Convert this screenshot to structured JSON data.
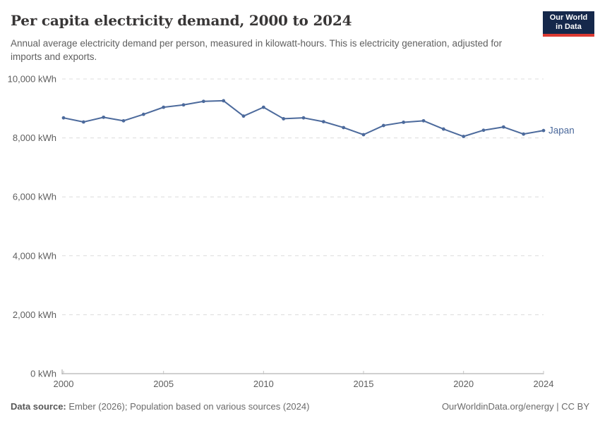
{
  "header": {
    "title": "Per capita electricity demand, 2000 to 2024",
    "subtitle": "Annual average electricity demand per person, measured in kilowatt-hours. This is electricity generation, adjusted for imports and exports.",
    "logo": {
      "line1": "Our World",
      "line2": "in Data",
      "bg_color": "#15284B",
      "accent_color": "#DC3A32"
    }
  },
  "chart_data": {
    "type": "line",
    "title": "Per capita electricity demand, 2000 to 2024",
    "unit": "kWh",
    "x": [
      2000,
      2001,
      2002,
      2003,
      2004,
      2005,
      2006,
      2007,
      2008,
      2009,
      2010,
      2011,
      2012,
      2013,
      2014,
      2015,
      2016,
      2017,
      2018,
      2019,
      2020,
      2021,
      2022,
      2023,
      2024
    ],
    "series": [
      {
        "name": "Japan",
        "color": "#4C6A9C",
        "values": [
          8680,
          8540,
          8700,
          8580,
          8800,
          9040,
          9120,
          9240,
          9260,
          8740,
          9040,
          8650,
          8680,
          8550,
          8350,
          8110,
          8420,
          8530,
          8580,
          8300,
          8050,
          8260,
          8370,
          8130,
          8250
        ]
      }
    ],
    "xlabel": "",
    "ylabel": "",
    "xlim": [
      2000,
      2024
    ],
    "ylim": [
      0,
      10000
    ],
    "xticks": [
      {
        "value": 2000,
        "label": "2000"
      },
      {
        "value": 2005,
        "label": "2005"
      },
      {
        "value": 2010,
        "label": "2010"
      },
      {
        "value": 2015,
        "label": "2015"
      },
      {
        "value": 2020,
        "label": "2020"
      },
      {
        "value": 2024,
        "label": "2024"
      }
    ],
    "yticks": [
      {
        "value": 0,
        "label": "0 kWh"
      },
      {
        "value": 2000,
        "label": "2,000 kWh"
      },
      {
        "value": 4000,
        "label": "4,000 kWh"
      },
      {
        "value": 6000,
        "label": "6,000 kWh"
      },
      {
        "value": 8000,
        "label": "8,000 kWh"
      },
      {
        "value": 10000,
        "label": "10,000 kWh"
      }
    ],
    "grid": "horizontal-dashed",
    "legend_position": "end-of-line-label",
    "colors": {
      "gridline": "#dcdcdc",
      "axis_line": "#a1a1a1",
      "tick_mark": "#c4c4c4",
      "tick_label": "#5e5e5e"
    }
  },
  "footer": {
    "source_label": "Data source:",
    "source_text": " Ember (2026); Population based on various sources (2024)",
    "right_text": "OurWorldinData.org/energy | CC BY"
  }
}
